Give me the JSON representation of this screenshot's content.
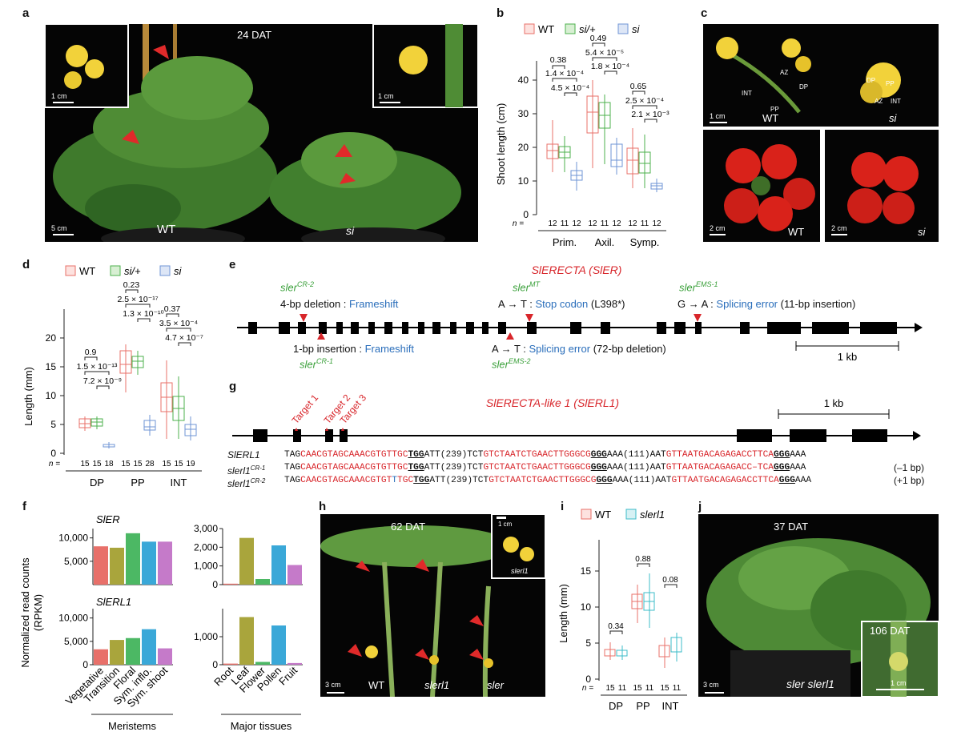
{
  "panels": {
    "a": {
      "letter": "a",
      "dat": "24 DAT",
      "inset_scale": "1 cm",
      "scale": "5 cm",
      "label_wt": "WT",
      "label_si": "si"
    },
    "b": {
      "letter": "b",
      "ylabel": "Shoot length (cm)",
      "yticks": [
        "0",
        "10",
        "20",
        "30",
        "40"
      ],
      "n_prefix": "n =",
      "groups": [
        "Prim.",
        "Axil.",
        "Symp."
      ],
      "n_values": [
        "12",
        "11",
        "12"
      ],
      "pvals": {
        "prim": [
          "0.38",
          "1.4 × 10⁻⁴",
          "4.5 × 10⁻⁴"
        ],
        "axil": [
          "0.49",
          "5.4 × 10⁻⁵",
          "1.8 × 10⁻⁴"
        ],
        "symp": [
          "0.65",
          "2.5 × 10⁻⁴",
          "2.1 × 10⁻³"
        ]
      }
    },
    "c": {
      "letter": "c",
      "labels": [
        "INT",
        "AZ",
        "DP",
        "PP",
        "DP",
        "PP",
        "AZ",
        "INT"
      ],
      "scale1": "1 cm",
      "scale2": "2 cm",
      "scale3": "2 cm",
      "wt": "WT",
      "si": "si"
    },
    "d": {
      "letter": "d",
      "ylabel": "Length (mm)",
      "yticks": [
        "0",
        "5",
        "10",
        "15",
        "20"
      ],
      "n_prefix": "n =",
      "groups": [
        "DP",
        "PP",
        "INT"
      ],
      "n_values": [
        [
          "15",
          "15",
          "18"
        ],
        [
          "15",
          "15",
          "28"
        ],
        [
          "15",
          "15",
          "19"
        ]
      ],
      "pvals": {
        "dp": [
          "0.9",
          "1.5 × 10⁻¹³",
          "7.2 × 10⁻⁹"
        ],
        "pp": [
          "0.23",
          "2.5 × 10⁻¹⁷",
          "1.3 × 10⁻¹⁰"
        ],
        "int": [
          "0.37",
          "3.5 × 10⁻⁴",
          "4.7 × 10⁻⁷"
        ]
      }
    },
    "e": {
      "letter": "e",
      "gene": "SlERECTA (SlER)",
      "scale": "1 kb",
      "cr2_sup": "CR-2",
      "cr2_desc": "4-bp deletion : ",
      "cr2_effect": "Frameshift",
      "cr1_sup": "CR-1",
      "cr1_desc": "1-bp insertion : ",
      "cr1_effect": "Frameshift",
      "mt_sup": "MT",
      "mt_desc": "A → T : ",
      "mt_effect": "Stop codon",
      "mt_note": " (L398*)",
      "ems2_sup": "EMS-2",
      "ems2_desc": "A → T : ",
      "ems2_effect": "Splicing error",
      "ems2_note": " (72-bp deletion)",
      "ems1_sup": "EMS-1",
      "ems1_desc": "G → A : ",
      "ems1_effect": "Splicing error",
      "ems1_note": " (11-bp insertion)",
      "allele_base": "sler"
    },
    "g": {
      "letter": "g",
      "gene": "SlERECTA-like 1 (SlERL1)",
      "scale": "1 kb",
      "targets": [
        "Target 1",
        "Target 2",
        "Target 3"
      ],
      "rows": [
        {
          "name": "SlERL1",
          "a": "TAG",
          "b": "CAACGTAGCAAACGTGTTGC",
          "c": "TGG",
          "d": "ATT(239)TCT",
          "e": "GTCTAATCTGAACTTGGGCG",
          "f": "GGG",
          "g": "AAA(111)AAT",
          "h": "GTTAATGACAGAGACCTTCA",
          "i": "GGG",
          "j": "AAA",
          "note": ""
        },
        {
          "name": "slerl1",
          "sup": "CR-1",
          "a": "TAG",
          "b": "CAACGTAGCAAACGTGTTGC",
          "c": "TGG",
          "d": "ATT(239)TCT",
          "e": "GTCTAATCTGAACTTGGGCG",
          "f": "GGG",
          "g": "AAA(111)AAT",
          "h": "GTTAATGACAGAGACC–TCA",
          "i": "GGG",
          "j": "AAA",
          "note": "(–1 bp)"
        },
        {
          "name": "slerl1",
          "sup": "CR-2",
          "a": "TAG",
          "b": "CAACGTAGCAAACGTGT",
          "ins": "T",
          "b2": "TGC",
          "c": "TGG",
          "d": "ATT(239)TCT",
          "e": "GTCTAATCTGAACTTGGGCG",
          "f": "GGG",
          "g": "AAA(111)AAT",
          "h": "GTTAATGACAGAGACCTTCA",
          "i": "GGG",
          "j": "AAA",
          "note": "(+1 bp)"
        }
      ]
    },
    "f": {
      "letter": "f",
      "ylabel1": "Normalized read counts",
      "ylabel2": "(RPKM)",
      "gene1": "SlER",
      "gene2": "SlERL1",
      "group1": "Meristems",
      "group2": "Major tissues"
    },
    "h": {
      "letter": "h",
      "dat": "62 DAT",
      "inset_scale": "1 cm",
      "inset_label": "slerl1",
      "scale": "3 cm",
      "labels": [
        "WT",
        "slerl1",
        "sler"
      ]
    },
    "i": {
      "letter": "i",
      "ylabel": "Length (mm)",
      "yticks": [
        "0",
        "5",
        "10",
        "15"
      ],
      "n_prefix": "n =",
      "groups": [
        "DP",
        "PP",
        "INT"
      ],
      "n_values": [
        "15",
        "11"
      ],
      "pvals": [
        "0.34",
        "0.88",
        "0.08"
      ]
    },
    "j": {
      "letter": "j",
      "dat": "37 DAT",
      "inset_dat": "106 DAT",
      "inset_scale": "1 cm",
      "scale": "3 cm",
      "label": "sler slerl1"
    }
  },
  "legend": {
    "wt": "WT",
    "si_het": "si/+",
    "si": "si",
    "slerl1": "slerl1"
  },
  "colors": {
    "wt": "#e8706a",
    "si_het": "#4cb04c",
    "si": "#6f94d6",
    "slerl1": "#3cbcc8",
    "red": "#d8262b",
    "blue": "#2a6ebb",
    "allele_green": "#3aa03a"
  },
  "chart_data": [
    {
      "type": "bar",
      "panel": "f-SlER-meristems",
      "title": "SlER",
      "categories": [
        "Vegetative",
        "Transition",
        "Floral",
        "Sym. inflo.",
        "Sym. shoot"
      ],
      "values": [
        8200,
        7900,
        11000,
        9200,
        9200
      ],
      "ylim": [
        0,
        12000
      ],
      "yticks": [
        "5,000",
        "10,000"
      ],
      "xlabel": "Meristems",
      "colors": [
        "#e8706a",
        "#a9a53c",
        "#4cb864",
        "#3aa8d8",
        "#c57ac9"
      ]
    },
    {
      "type": "bar",
      "panel": "f-SlER-tissues",
      "categories": [
        "Root",
        "Leaf",
        "Flower",
        "Pollen",
        "Fruit"
      ],
      "values": [
        50,
        2500,
        300,
        2100,
        1050
      ],
      "ylim": [
        0,
        3000
      ],
      "yticks": [
        "0",
        "1,000",
        "2,000",
        "3,000"
      ],
      "xlabel": "Major tissues",
      "colors": [
        "#e8706a",
        "#a9a53c",
        "#4cb864",
        "#3aa8d8",
        "#c57ac9"
      ]
    },
    {
      "type": "bar",
      "panel": "f-SlERL1-meristems",
      "title": "SlERL1",
      "categories": [
        "Vegetative",
        "Transition",
        "Floral",
        "Sym. inflo.",
        "Sym. shoot"
      ],
      "values": [
        3300,
        5300,
        5700,
        7600,
        3500
      ],
      "ylim": [
        0,
        12000
      ],
      "yticks": [
        "0",
        "5,000",
        "10,000"
      ],
      "xlabel": "Meristems",
      "colors": [
        "#e8706a",
        "#a9a53c",
        "#4cb864",
        "#3aa8d8",
        "#c57ac9"
      ]
    },
    {
      "type": "bar",
      "panel": "f-SlERL1-tissues",
      "categories": [
        "Root",
        "Leaf",
        "Flower",
        "Pollen",
        "Fruit"
      ],
      "values": [
        40,
        1700,
        100,
        1400,
        60
      ],
      "ylim": [
        0,
        2000
      ],
      "yticks": [
        "0",
        "1,000"
      ],
      "xlabel": "Major tissues",
      "colors": [
        "#e8706a",
        "#a9a53c",
        "#4cb864",
        "#3aa8d8",
        "#c57ac9"
      ]
    }
  ]
}
